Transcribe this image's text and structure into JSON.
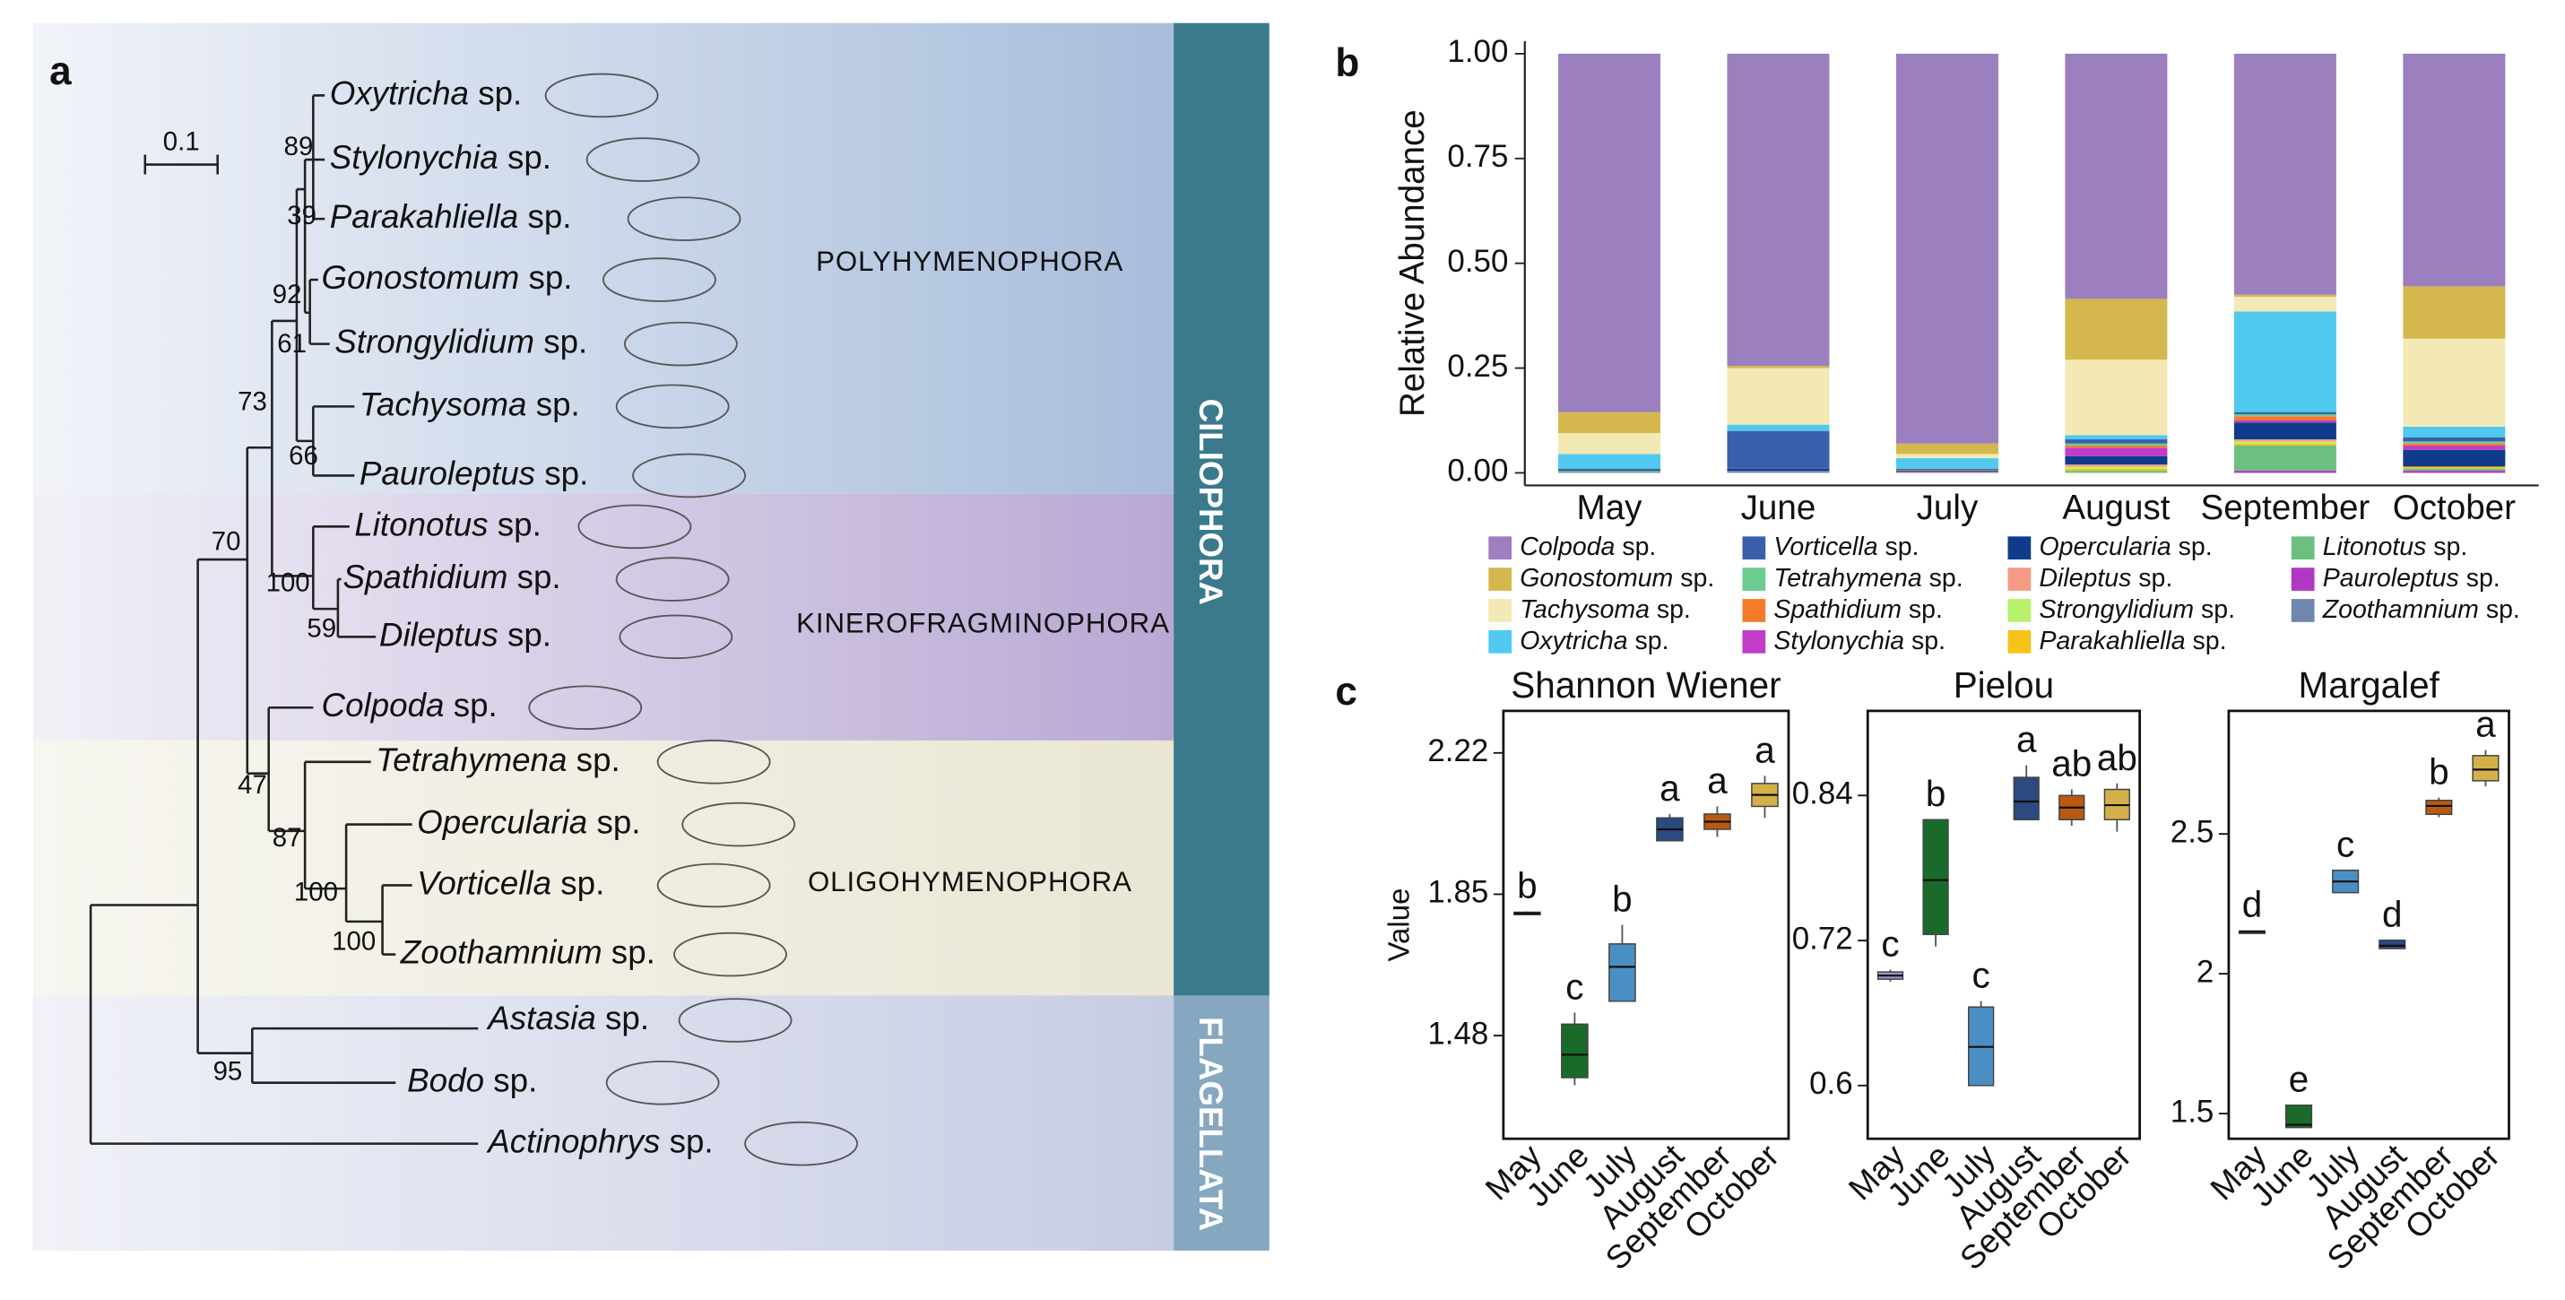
{
  "panel_labels": [
    "a",
    "b",
    "c"
  ],
  "tree": {
    "scale": "0.1",
    "leaves": [
      "Oxytricha sp.",
      "Stylonychia sp.",
      "Parakahliella sp.",
      "Gonostomum sp.",
      "Strongylidium sp.",
      "Tachysoma sp.",
      "Pauroleptus sp.",
      "Litonotus sp.",
      "Spathidium sp.",
      "Dileptus sp.",
      "Colpoda sp.",
      "Tetrahymena sp.",
      "Opercularia sp.",
      "Vorticella sp.",
      "Zoothamnium sp.",
      "Astasia sp.",
      "Bodo sp.",
      "Actinophrys sp."
    ],
    "support": [
      89,
      39,
      92,
      61,
      73,
      66,
      70,
      100,
      59,
      47,
      87,
      100,
      100,
      95
    ],
    "groups": [
      "POLYHYMENOPHORA",
      "KINEROFRAGMINOPHORA",
      "OLIGOHYMENOPHORA"
    ],
    "clades": [
      "CILIOPHORA",
      "FLAGELLATA"
    ]
  },
  "chart_data": [
    {
      "type": "stacked_bar",
      "ylabel": "Relative Abundance",
      "categories": [
        "May",
        "June",
        "July",
        "August",
        "September",
        "October"
      ],
      "ylim": [
        -0.03,
        1.03
      ],
      "yticks": [
        {
          "value": 0,
          "label": "0.00"
        },
        {
          "value": 0.25,
          "label": "0.25"
        },
        {
          "value": 0.5,
          "label": "0.50"
        },
        {
          "value": 0.75,
          "label": "0.75"
        },
        {
          "value": 1,
          "label": "1.00"
        }
      ],
      "series": [
        {
          "name": "Colpoda sp.",
          "color": "#9b7fbe",
          "values": [
            0.855,
            0.745,
            0.93,
            0.585,
            0.575,
            0.555
          ]
        },
        {
          "name": "Gonostomum sp.",
          "color": "#d4b84e",
          "values": [
            0.05,
            0.005,
            0.025,
            0.145,
            0.005,
            0.125
          ]
        },
        {
          "name": "Tachysoma sp.",
          "color": "#f2e9b5",
          "values": [
            0.05,
            0.135,
            0.01,
            0.18,
            0.035,
            0.21
          ]
        },
        {
          "name": "Oxytricha sp.",
          "color": "#4fc9f0",
          "values": [
            0.035,
            0.015,
            0.025,
            0.01,
            0.24,
            0.025
          ]
        },
        {
          "name": "Vorticella sp.",
          "color": "#3a5fad",
          "values": [
            0.003,
            0.09,
            0.003,
            0.01,
            0.005,
            0.01
          ]
        },
        {
          "name": "Tetrahymena sp.",
          "color": "#6dcc8f",
          "values": [
            0,
            0,
            0,
            0.005,
            0.005,
            0.005
          ]
        },
        {
          "name": "Spathidium sp.",
          "color": "#f57b2a",
          "values": [
            0,
            0,
            0.002,
            0.005,
            0.01,
            0.005
          ]
        },
        {
          "name": "Stylonychia sp.",
          "color": "#c23bc9",
          "values": [
            0,
            0,
            0,
            0.02,
            0.005,
            0.01
          ]
        },
        {
          "name": "Opercularia sp.",
          "color": "#0f3b8a",
          "values": [
            0.002,
            0.005,
            0.002,
            0.02,
            0.04,
            0.04
          ]
        },
        {
          "name": "Dileptus sp.",
          "color": "#f59a84",
          "values": [
            0,
            0,
            0,
            0.005,
            0.005,
            0
          ]
        },
        {
          "name": "Strongylidium sp.",
          "color": "#b7f26b",
          "values": [
            0,
            0,
            0,
            0.005,
            0.005,
            0
          ]
        },
        {
          "name": "Parakahliella sp.",
          "color": "#f7c21a",
          "values": [
            0,
            0,
            0,
            0.005,
            0.005,
            0.005
          ]
        },
        {
          "name": "Litonotus sp.",
          "color": "#6cbf80",
          "values": [
            0.003,
            0,
            0,
            0.005,
            0.06,
            0.005
          ]
        },
        {
          "name": "Pauroleptus sp.",
          "color": "#b037c4",
          "values": [
            0,
            0,
            0,
            0,
            0.005,
            0.005
          ]
        },
        {
          "name": "Zoothamnium sp.",
          "color": "#6f86b0",
          "values": [
            0.002,
            0.005,
            0.003,
            0,
            0,
            0
          ]
        }
      ]
    },
    {
      "type": "box",
      "title": "Shannon Wiener",
      "ylabel": "Value",
      "categories": [
        "May",
        "June",
        "July",
        "August",
        "September",
        "October"
      ],
      "colors": [
        "#a88fcf",
        "#1a6b2a",
        "#4a8fc4",
        "#2a4a80",
        "#b85a12",
        "#d4b04a"
      ],
      "ylim": [
        1.21,
        2.33
      ],
      "yticks": [
        1.48,
        1.85,
        2.22
      ],
      "min": [
        1.795,
        1.35,
        1.57,
        1.99,
        2.0,
        2.05
      ],
      "q1": [
        1.797,
        1.37,
        1.57,
        1.99,
        2.02,
        2.08
      ],
      "median": [
        1.8,
        1.43,
        1.66,
        2.02,
        2.04,
        2.11
      ],
      "q3": [
        1.803,
        1.51,
        1.72,
        2.05,
        2.06,
        2.14
      ],
      "max": [
        1.805,
        1.54,
        1.77,
        2.06,
        2.08,
        2.16
      ],
      "letters": [
        "b",
        "c",
        "b",
        "a",
        "a",
        "a"
      ]
    },
    {
      "type": "box",
      "title": "Pielou",
      "categories": [
        "May",
        "June",
        "July",
        "August",
        "September",
        "October"
      ],
      "colors": [
        "#a88fcf",
        "#1a6b2a",
        "#4a8fc4",
        "#2a4a80",
        "#b85a12",
        "#d4b04a"
      ],
      "ylim": [
        0.556,
        0.91
      ],
      "yticks": [
        0.6,
        0.72,
        0.84
      ],
      "min": [
        0.686,
        0.715,
        0.6,
        0.82,
        0.815,
        0.81
      ],
      "q1": [
        0.688,
        0.725,
        0.6,
        0.82,
        0.82,
        0.82
      ],
      "median": [
        0.691,
        0.77,
        0.632,
        0.835,
        0.83,
        0.832
      ],
      "q3": [
        0.694,
        0.82,
        0.665,
        0.855,
        0.84,
        0.845
      ],
      "max": [
        0.696,
        0.82,
        0.67,
        0.865,
        0.845,
        0.85
      ],
      "letters": [
        "c",
        "b",
        "c",
        "a",
        "ab",
        "ab"
      ]
    },
    {
      "type": "box",
      "title": "Margalef",
      "categories": [
        "May",
        "June",
        "July",
        "August",
        "September",
        "October"
      ],
      "colors": [
        "#a88fcf",
        "#1a6b2a",
        "#4a8fc4",
        "#2a4a80",
        "#b85a12",
        "#d4b04a"
      ],
      "ylim": [
        1.41,
        2.94
      ],
      "yticks": [
        1.5,
        2.0,
        2.5
      ],
      "min": [
        2.145,
        1.45,
        2.29,
        2.09,
        2.56,
        2.67
      ],
      "q1": [
        2.147,
        1.45,
        2.29,
        2.09,
        2.57,
        2.69
      ],
      "median": [
        2.15,
        1.46,
        2.33,
        2.1,
        2.6,
        2.73
      ],
      "q3": [
        2.153,
        1.53,
        2.37,
        2.12,
        2.62,
        2.78
      ],
      "max": [
        2.155,
        1.53,
        2.37,
        2.12,
        2.63,
        2.8
      ],
      "letters": [
        "d",
        "e",
        "c",
        "d",
        "b",
        "a"
      ]
    }
  ]
}
